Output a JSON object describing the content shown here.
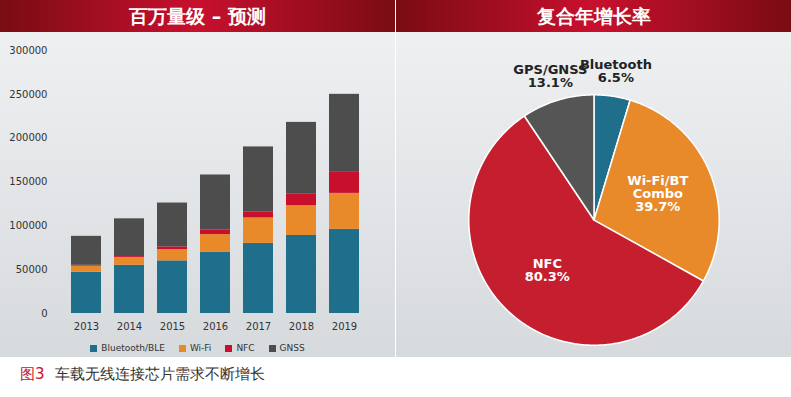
{
  "chart_data": [
    {
      "type": "bar",
      "title": "百万量级 – 预测",
      "stacked": true,
      "categories": [
        "2013",
        "2014",
        "2015",
        "2016",
        "2017",
        "2018",
        "2019"
      ],
      "series": [
        {
          "name": "Bluetooth/BLE",
          "color": "#1f6e8c",
          "values": [
            47000,
            55000,
            60000,
            70000,
            80000,
            89000,
            96000
          ]
        },
        {
          "name": "Wi-Fi",
          "color": "#e8892a",
          "values": [
            7000,
            9000,
            13000,
            20000,
            29000,
            34000,
            41000
          ]
        },
        {
          "name": "NFC",
          "color": "#c8102e",
          "values": [
            1000,
            1000,
            3000,
            5000,
            7000,
            13000,
            24000
          ]
        },
        {
          "name": "GNSS",
          "color": "#4d4d4d",
          "values": [
            33000,
            43000,
            50000,
            63000,
            74000,
            82000,
            89000
          ]
        }
      ],
      "ylim": [
        0,
        300000
      ],
      "yticks": [
        0,
        50000,
        100000,
        150000,
        200000,
        250000,
        300000
      ],
      "grid": false,
      "legend": "bottom"
    },
    {
      "type": "pie",
      "title": "复合年增长率",
      "categories": [
        "Bluetooth",
        "Wi-Fi/BT Combo",
        "NFC",
        "GPS/GNSS"
      ],
      "values": [
        6.5,
        39.7,
        80.3,
        13.1
      ],
      "value_labels": [
        "6.5%",
        "39.7%",
        "80.3%",
        "13.1%"
      ],
      "colors": [
        "#1f6e8c",
        "#e8892a",
        "#c41e2f",
        "#555555"
      ],
      "data_labels": true
    }
  ],
  "caption": "图3 车载无线连接芯片需求不断增长"
}
